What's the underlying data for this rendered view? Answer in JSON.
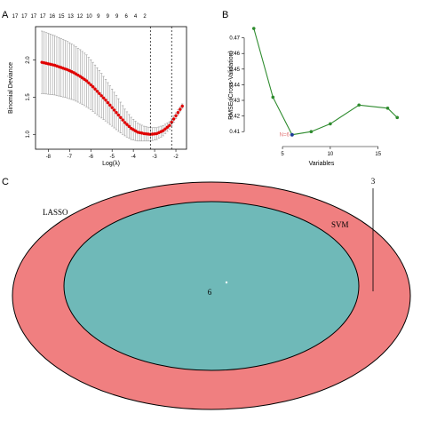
{
  "chart_data": [
    {
      "panel": "A",
      "type": "line",
      "ylabel": "Binomial Deviance",
      "xlabel": "Log(λ)",
      "top_axis_labels": [
        "17",
        "17",
        "17",
        "17",
        "16",
        "15",
        "13",
        "12",
        "10",
        "9",
        "9",
        "9",
        "6",
        "4",
        "2"
      ],
      "x_ticks": [
        -8,
        -7,
        -6,
        -5,
        -4,
        -3,
        -2
      ],
      "y_ticks": [
        1.0,
        1.5,
        2.0
      ],
      "xlim": [
        -8.6,
        -1.5
      ],
      "ylim": [
        0.8,
        2.45
      ],
      "vlines": [
        -3.2,
        -2.2
      ],
      "series": [
        {
          "color": "#e00000",
          "x": [
            -8.3,
            -8.0,
            -7.7,
            -7.4,
            -7.1,
            -6.8,
            -6.5,
            -6.2,
            -5.9,
            -5.6,
            -5.3,
            -5.0,
            -4.7,
            -4.4,
            -4.1,
            -3.8,
            -3.5,
            -3.2,
            -2.9,
            -2.6,
            -2.3,
            -2.0,
            -1.7
          ],
          "y": [
            1.97,
            1.95,
            1.93,
            1.9,
            1.87,
            1.83,
            1.78,
            1.72,
            1.64,
            1.55,
            1.46,
            1.36,
            1.26,
            1.16,
            1.08,
            1.03,
            1.01,
            1.0,
            1.01,
            1.05,
            1.12,
            1.25,
            1.38
          ],
          "err": [
            0.42,
            0.41,
            0.4,
            0.39,
            0.38,
            0.37,
            0.36,
            0.35,
            0.33,
            0.31,
            0.28,
            0.25,
            0.22,
            0.18,
            0.15,
            0.12,
            0.1,
            0.09,
            0.08,
            0.07,
            0.05,
            0.04,
            0.03
          ]
        }
      ]
    },
    {
      "panel": "B",
      "type": "line",
      "ylabel": "RMSE (Cross-Validation)",
      "xlabel": "Variables",
      "x_ticks": [
        5,
        10,
        15
      ],
      "y_ticks": [
        0.41,
        0.42,
        0.43,
        0.44,
        0.45,
        0.46,
        0.47
      ],
      "xlim": [
        1,
        18
      ],
      "ylim": [
        0.405,
        0.48
      ],
      "annotation": "N=6",
      "series": [
        {
          "color": "#2e8b2e",
          "x": [
            2,
            4,
            6,
            8,
            10,
            13,
            16,
            17
          ],
          "y": [
            0.476,
            0.432,
            0.408,
            0.41,
            0.415,
            0.427,
            0.425,
            0.419
          ],
          "highlight_index": 2,
          "highlight_color": "#1f3c99"
        }
      ]
    },
    {
      "panel": "C",
      "type": "venn",
      "sets": [
        {
          "label": "LASSO",
          "color": "#f07f80"
        },
        {
          "label": "SVM",
          "color": "#6fb9b8"
        }
      ],
      "overlap_value": "6",
      "svm_only_value": "3"
    }
  ],
  "panel_letters": {
    "a": "A",
    "b": "B",
    "c": "C"
  }
}
